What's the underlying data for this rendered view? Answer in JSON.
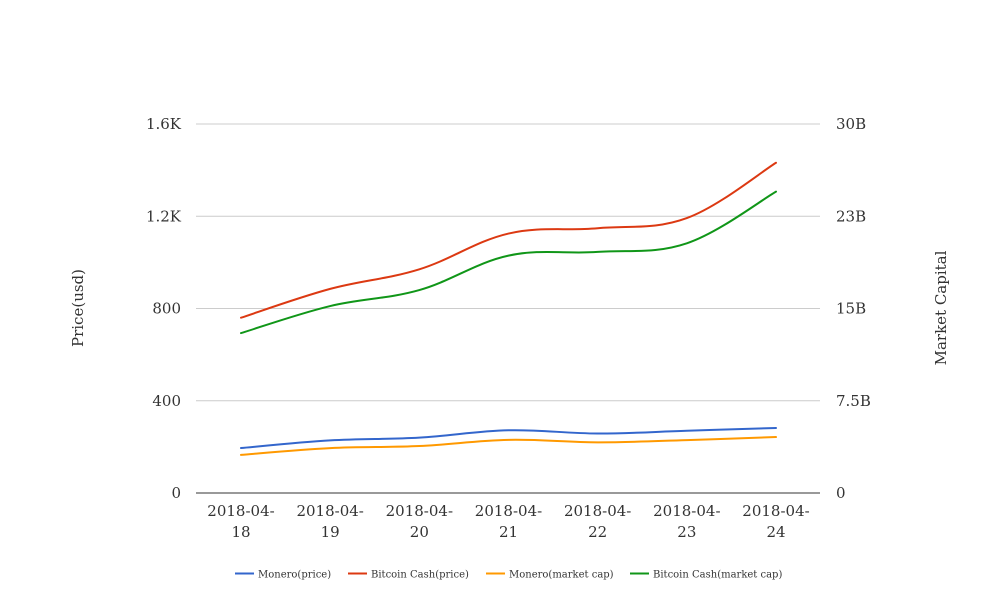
{
  "chart_data": {
    "type": "line",
    "title": "",
    "categories": [
      "2018-04-18",
      "2018-04-19",
      "2018-04-20",
      "2018-04-21",
      "2018-04-22",
      "2018-04-23",
      "2018-04-24"
    ],
    "category_label_lines": [
      [
        "2018-04-",
        "18"
      ],
      [
        "2018-04-",
        "19"
      ],
      [
        "2018-04-",
        "20"
      ],
      [
        "2018-04-",
        "21"
      ],
      [
        "2018-04-",
        "22"
      ],
      [
        "2018-04-",
        "23"
      ],
      [
        "2018-04-",
        "24"
      ]
    ],
    "ylabel_left": "Price(usd)",
    "ylabel_right": "Market Capital",
    "ylim_left": [
      0,
      1600
    ],
    "ylim_right": [
      0,
      30000000000
    ],
    "left_ticks": [
      0,
      400,
      800,
      1200,
      1600
    ],
    "left_tick_labels": [
      "0",
      "400",
      "800",
      "1.2K",
      "1.6K"
    ],
    "right_ticks": [
      0,
      7500000000,
      15000000000,
      22500000000,
      30000000000
    ],
    "right_tick_labels": [
      "0",
      "7.5B",
      "15B",
      "23B",
      "30B"
    ],
    "grid": true,
    "legend_position": "bottom",
    "series": [
      {
        "name": "Monero(price)",
        "axis": "left",
        "color": "#3366cc",
        "values": [
          195,
          228,
          240,
          272,
          258,
          270,
          282
        ]
      },
      {
        "name": "Bitcoin Cash(price)",
        "axis": "left",
        "color": "#dc3912",
        "values": [
          760,
          885,
          970,
          1125,
          1148,
          1192,
          1432
        ]
      },
      {
        "name": "Monero(market cap)",
        "axis": "right",
        "color": "#ff9900",
        "values": [
          3100000000,
          3650000000,
          3820000000,
          4320000000,
          4120000000,
          4300000000,
          4550000000
        ]
      },
      {
        "name": "Bitcoin Cash(market cap)",
        "axis": "right",
        "color": "#109618",
        "values": [
          13000000000,
          15200000000,
          16500000000,
          19300000000,
          19600000000,
          20300000000,
          24500000000
        ]
      }
    ]
  }
}
